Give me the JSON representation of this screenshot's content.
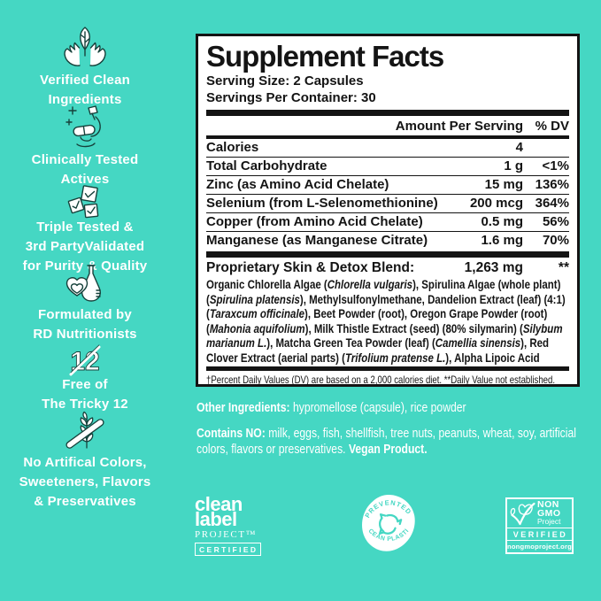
{
  "colors": {
    "background": "#45D7C3",
    "panel_background": "#FFFFFF",
    "ink": "#141414",
    "text_light": "#FFFFFF"
  },
  "sidebar": {
    "items": [
      {
        "icon": "hands-holding-leaf-icon",
        "label": "Verified Clean\nIngredients"
      },
      {
        "icon": "microscope-icon",
        "label": "Clinically Tested\nActives"
      },
      {
        "icon": "checked-documents-icon",
        "label": "Triple Tested &\n3rd PartyValidated\nfor Purity & Quality"
      },
      {
        "icon": "flask-hearts-icon",
        "label": "Formulated by\nRD Nutritionists"
      },
      {
        "icon": "crossed-out-12-icon",
        "label": "Free of\nThe Tricky 12"
      },
      {
        "icon": "no-wheat-icon",
        "label": "No Artifical Colors,\nSweeteners, Flavors\n& Preservatives"
      }
    ]
  },
  "facts": {
    "title": "Supplement Facts",
    "serving_size": "Serving Size: 2 Capsules",
    "servings_per_container": "Servings Per Container: 30",
    "columns": {
      "amount": "Amount Per Serving",
      "dv": "% DV"
    },
    "rows": [
      {
        "name": "Calories",
        "amount": "4",
        "dv": ""
      },
      {
        "name": "Total Carbohydrate",
        "amount": "1 g",
        "dv": "<1%"
      },
      {
        "name": "Zinc (as Amino Acid Chelate)",
        "amount": "15 mg",
        "dv": "136%"
      },
      {
        "name": "Selenium (from L-Selenomethionine)",
        "amount": "200 mcg",
        "dv": "364%"
      },
      {
        "name": "Copper (from Amino Acid Chelate)",
        "amount": "0.5 mg",
        "dv": "56%"
      },
      {
        "name": "Manganese (as Manganese Citrate)",
        "amount": "1.6 mg",
        "dv": "70%"
      }
    ],
    "blend": {
      "name": "Proprietary Skin & Detox Blend:",
      "amount": "1,263 mg",
      "dv": "**",
      "description": [
        {
          "text": "Organic Chlorella Algae (",
          "italic": false
        },
        {
          "text": "Chlorella vulgaris",
          "italic": true
        },
        {
          "text": "), Spirulina Algae (whole plant) (",
          "italic": false
        },
        {
          "text": "Spirulina platensis",
          "italic": true
        },
        {
          "text": "), Methylsulfonylmethane, Dandelion Extract (leaf) (4:1) (",
          "italic": false
        },
        {
          "text": "Taraxcum officinale",
          "italic": true
        },
        {
          "text": "), Beet Powder (root), Oregon Grape Powder (root) (",
          "italic": false
        },
        {
          "text": "Mahonia aquifolium",
          "italic": true
        },
        {
          "text": "), Milk Thistle Extract (seed) (80% silymarin) (",
          "italic": false
        },
        {
          "text": "Silybum marianum L.",
          "italic": true
        },
        {
          "text": "), Matcha Green Tea Powder (leaf) (",
          "italic": false
        },
        {
          "text": "Camellia sinensis",
          "italic": true
        },
        {
          "text": "), Red Clover Extract (aerial parts) (",
          "italic": false
        },
        {
          "text": "Trifolium pratense L.",
          "italic": true
        },
        {
          "text": "), Alpha Lipoic Acid",
          "italic": false
        }
      ]
    },
    "footnote": "†Percent Daily Values (DV) are based on a 2,000 calories diet. **Daily Value not established."
  },
  "other_ingredients": {
    "label": "Other Ingredients:",
    "value": " hypromellose (capsule), rice powder"
  },
  "contains": {
    "label": "Contains NO:",
    "value": " milk, eggs, fish, shellfish, tree nuts, peanuts, wheat, soy, artificial colors, flavors or preservatives. ",
    "vegan": "Vegan Product."
  },
  "badges": {
    "clean_label": {
      "word1": "clean",
      "word2": "label",
      "word3": "PROJECT™",
      "certified": "CERTIFIED"
    },
    "ocean_plastic": {
      "arc_top": "PREVENTED",
      "arc_bottom": "OCEAN PLASTIC",
      "icon": "recycle-icon"
    },
    "non_gmo": {
      "line1": "NON",
      "line2": "GMO",
      "line3": "Project",
      "verified": "VERIFIED",
      "url": "nongmoproject.org",
      "icon": "butterfly-icon"
    }
  }
}
